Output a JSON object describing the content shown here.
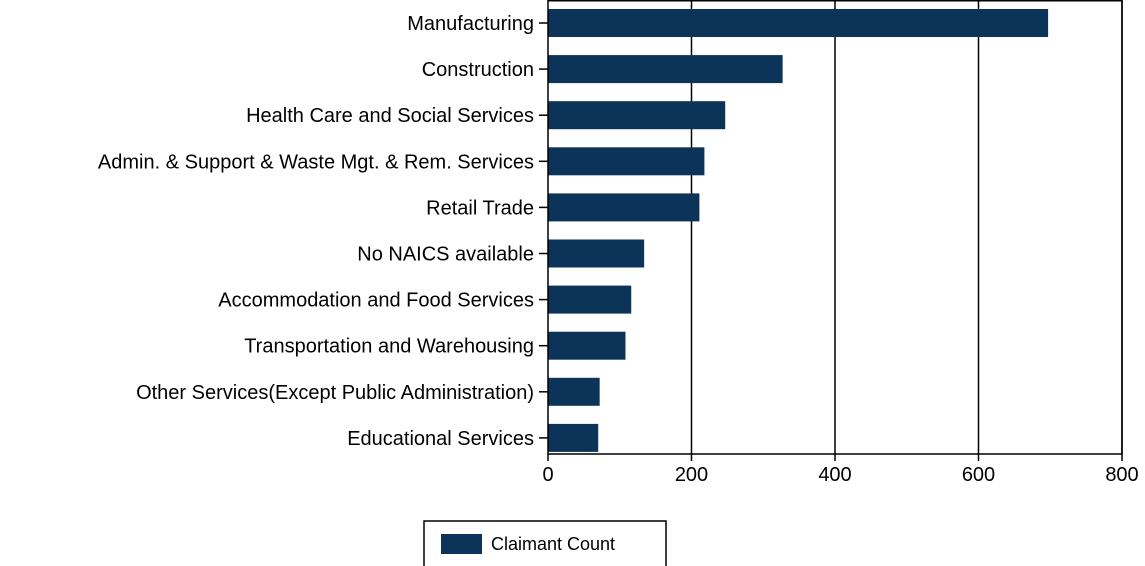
{
  "chart_data": {
    "type": "bar",
    "orientation": "horizontal",
    "categories": [
      "Manufacturing",
      "Construction",
      "Health Care and Social Services",
      "Admin. & Support & Waste Mgt. & Rem. Services",
      "Retail Trade",
      "No NAICS available",
      "Accommodation and Food Services",
      "Transportation and Warehousing",
      "Other Services(Except Public Administration)",
      "Educational Services"
    ],
    "series": [
      {
        "name": "Claimant Count",
        "values": [
          697,
          327,
          247,
          218,
          211,
          134,
          116,
          108,
          72,
          70
        ]
      }
    ],
    "xlim": [
      0,
      800
    ],
    "xticks": [
      "0",
      "200",
      "400",
      "600",
      "800"
    ],
    "grid": "vertical",
    "legend": "bottom-center",
    "colors": {
      "bar": "#0c3358",
      "grid": "#000000",
      "axis": "#000000"
    }
  }
}
